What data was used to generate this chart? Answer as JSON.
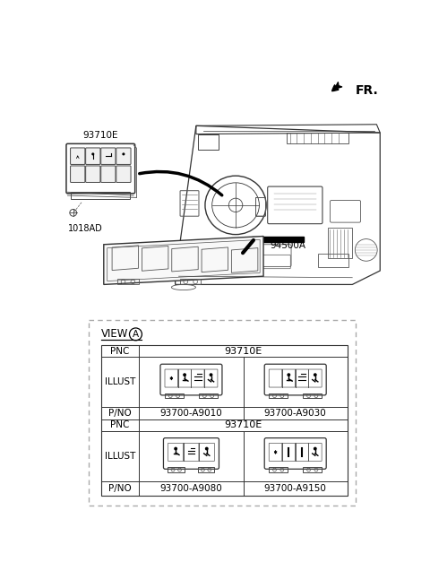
{
  "bg_color": "#ffffff",
  "fr_text": "FR.",
  "label_93710E": "93710E",
  "label_1018AD": "1018AD",
  "label_94500A": "94500A",
  "view_text": "VIEW",
  "view_circle_text": "A",
  "pnc_value": "93710E",
  "pno_row1_left": "93700-A9010",
  "pno_row1_right": "93700-A9030",
  "pno_row2_left": "93700-A9080",
  "pno_row2_right": "93700-A9150",
  "row_label_pnc": "PNC",
  "row_label_illust": "ILLUST",
  "row_label_pno": "P/NO"
}
